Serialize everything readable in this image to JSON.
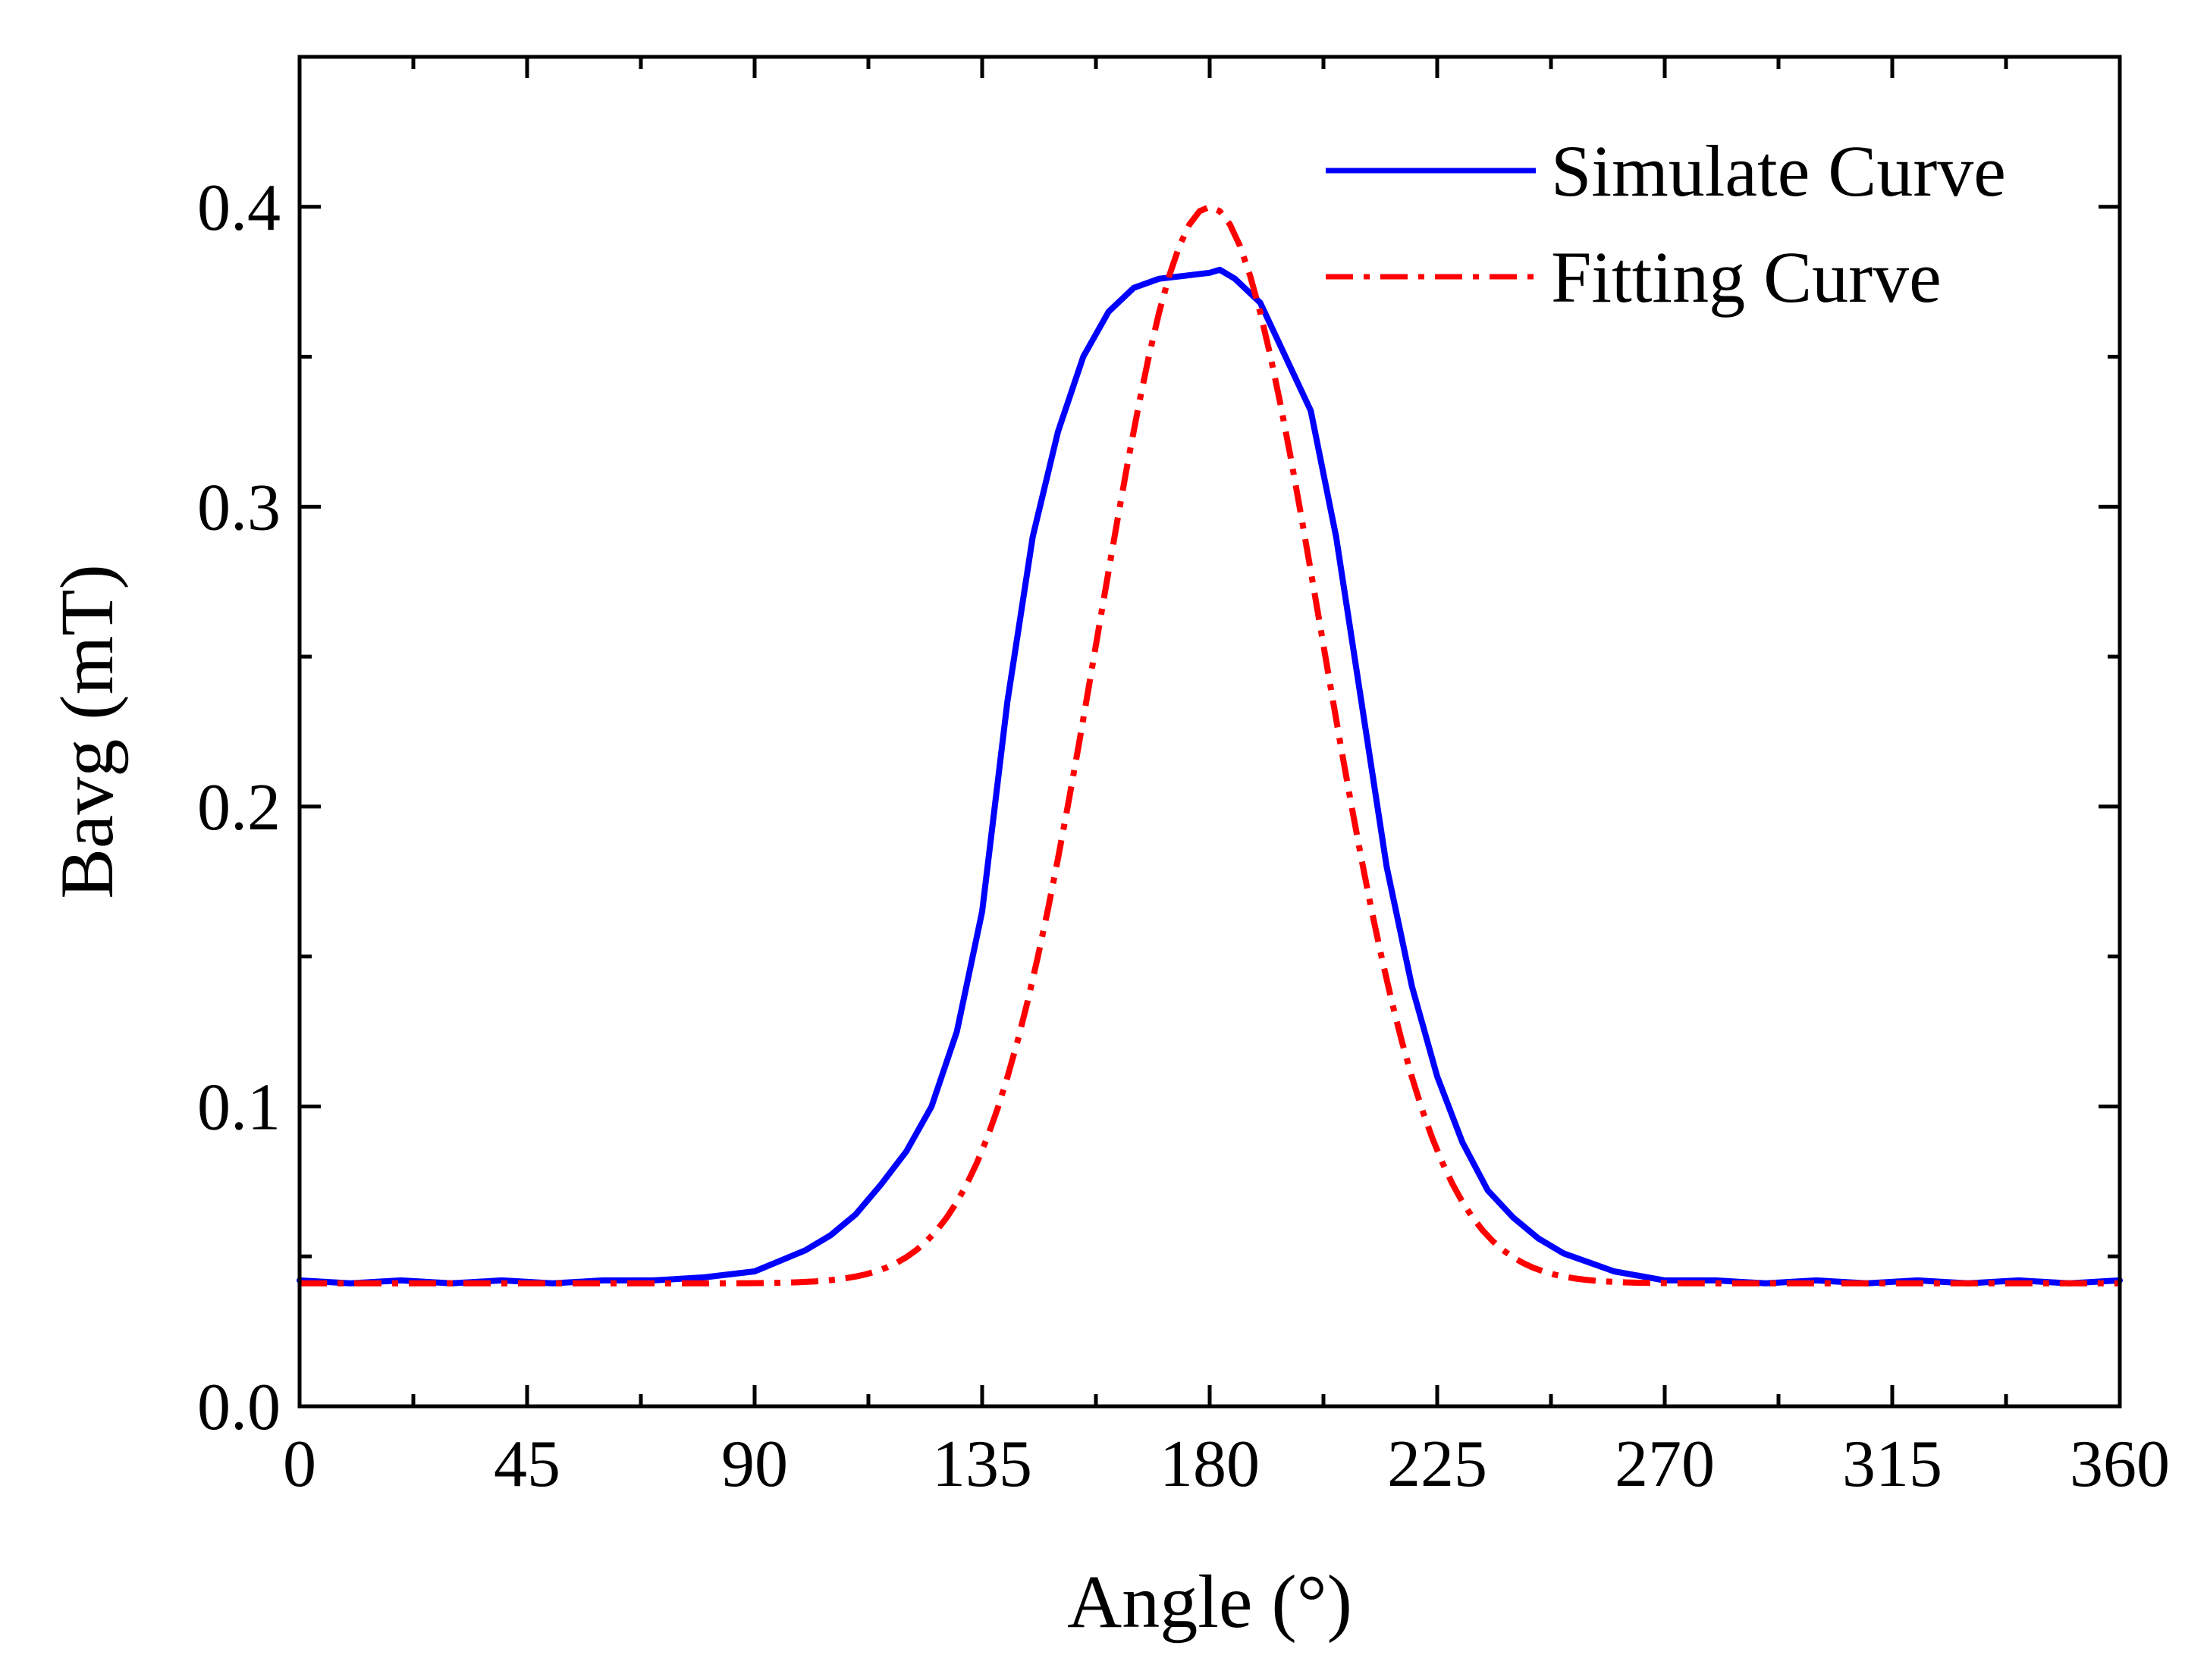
{
  "chart_data": {
    "type": "line",
    "title": "",
    "xlabel": "Angle (°)",
    "ylabel": "Bavg (mT)",
    "xlim": [
      0,
      360
    ],
    "ylim": [
      0,
      0.45
    ],
    "xticks": [
      0,
      45,
      90,
      135,
      180,
      225,
      270,
      315,
      360
    ],
    "xtick_labels": [
      "0",
      "45",
      "90",
      "135",
      "180",
      "225",
      "270",
      "315",
      "360"
    ],
    "yticks": [
      0,
      0.1,
      0.2,
      0.3,
      0.4
    ],
    "ytick_labels": [
      "0.0",
      "0.1",
      "0.2",
      "0.3",
      "0.4"
    ],
    "x_minor_step": 22.5,
    "y_minor_step": 0.05,
    "grid": false,
    "legend_position": "top-right",
    "series": [
      {
        "name": "Simulate Curve",
        "color": "#0000ff",
        "style": "solid",
        "x": [
          0,
          10,
          20,
          30,
          40,
          50,
          60,
          70,
          80,
          90,
          100,
          105,
          110,
          115,
          120,
          125,
          130,
          135,
          140,
          145,
          150,
          155,
          160,
          165,
          170,
          175,
          180,
          182,
          185,
          190,
          195,
          200,
          205,
          210,
          215,
          220,
          225,
          230,
          235,
          240,
          245,
          250,
          255,
          260,
          270,
          280,
          290,
          300,
          310,
          320,
          330,
          340,
          350,
          360
        ],
        "y": [
          0.042,
          0.041,
          0.042,
          0.041,
          0.042,
          0.041,
          0.042,
          0.042,
          0.043,
          0.045,
          0.052,
          0.057,
          0.064,
          0.074,
          0.085,
          0.1,
          0.125,
          0.165,
          0.235,
          0.29,
          0.325,
          0.35,
          0.365,
          0.373,
          0.376,
          0.377,
          0.378,
          0.379,
          0.376,
          0.368,
          0.35,
          0.332,
          0.29,
          0.235,
          0.18,
          0.14,
          0.11,
          0.088,
          0.072,
          0.063,
          0.056,
          0.051,
          0.048,
          0.045,
          0.042,
          0.042,
          0.041,
          0.042,
          0.041,
          0.042,
          0.041,
          0.042,
          0.041,
          0.042
        ]
      },
      {
        "name": "Fitting Curve",
        "color": "#ff0000",
        "style": "dashdot",
        "model": "gaussian",
        "baseline": 0.041,
        "amplitude": 0.359,
        "center": 180,
        "sigma": 22,
        "x_step": 2
      }
    ]
  }
}
